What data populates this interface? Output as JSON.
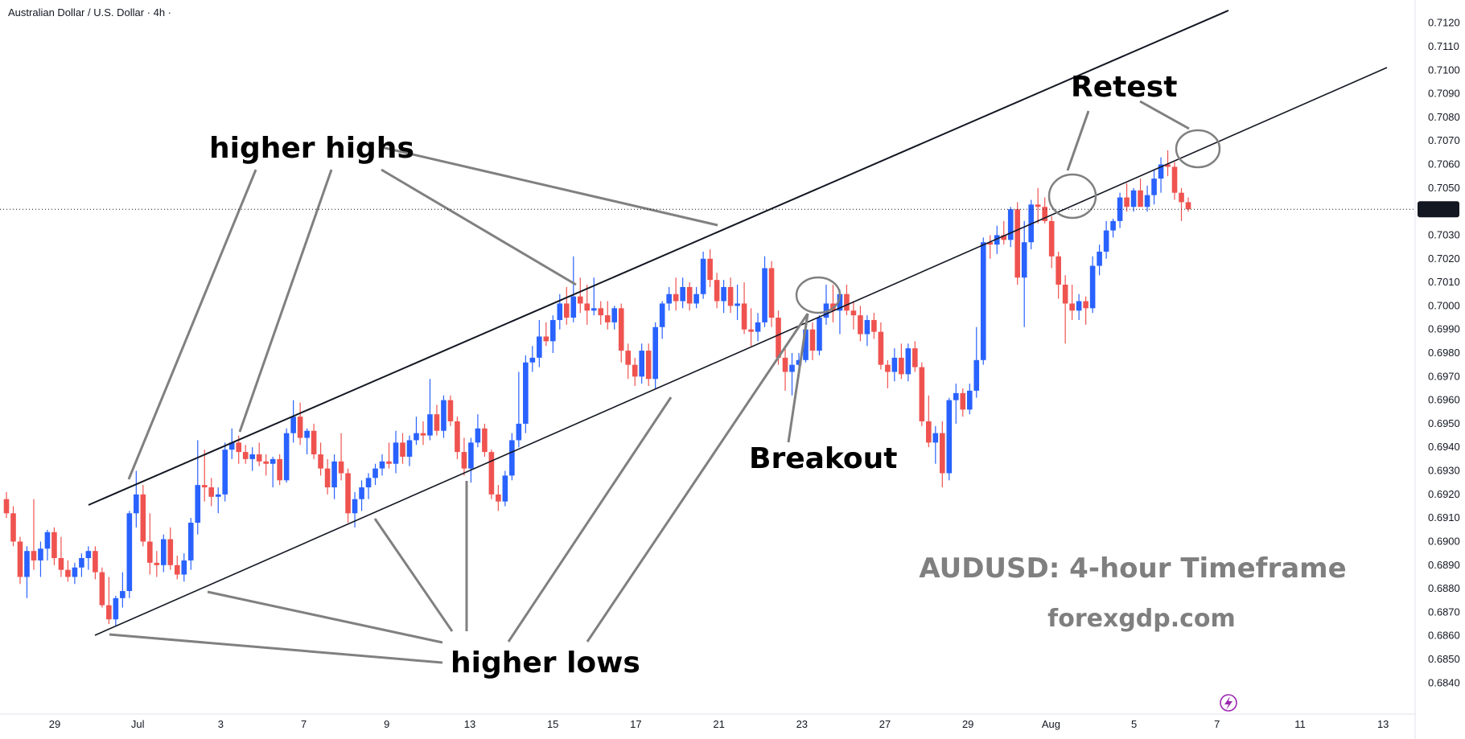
{
  "chart_data": {
    "type": "candlestick",
    "title": "Australian Dollar / U.S. Dollar · 4h ·",
    "watermark_title": "AUDUSD: 4-hour Timeframe",
    "watermark_site": "forexgdp.com",
    "ylim": [
      0.6835,
      0.7125
    ],
    "y_ticks": [
      "0.7120",
      "0.7110",
      "0.7100",
      "0.7090",
      "0.7080",
      "0.7070",
      "0.7060",
      "0.7050",
      "0.7030",
      "0.7020",
      "0.7010",
      "0.7000",
      "0.6990",
      "0.6980",
      "0.6970",
      "0.6960",
      "0.6950",
      "0.6940",
      "0.6930",
      "0.6920",
      "0.6910",
      "0.6900",
      "0.6890",
      "0.6880",
      "0.6870",
      "0.6860",
      "0.6850",
      "0.6840"
    ],
    "current_price": "0.7041",
    "x_ticks": [
      "29",
      "Jul",
      "3",
      "7",
      "9",
      "13",
      "15",
      "17",
      "21",
      "23",
      "27",
      "29",
      "Aug",
      "5",
      "7",
      "11",
      "13"
    ],
    "annotations": {
      "higher_highs": "higher highs",
      "higher_lows": "higher lows",
      "breakout": "Breakout",
      "retest": "Retest"
    },
    "colors": {
      "bull": "#2962ff",
      "bear": "#ef5350",
      "trendline": "#131722",
      "pointer": "#808080",
      "axis_text": "#131722",
      "price_badge": "#131722",
      "watermark": "#7f7f7f"
    },
    "candles": [
      [
        0.6918,
        0.6921,
        0.691,
        0.6912
      ],
      [
        0.6912,
        0.6915,
        0.6898,
        0.69
      ],
      [
        0.69,
        0.6902,
        0.6882,
        0.6885
      ],
      [
        0.6885,
        0.6898,
        0.6876,
        0.6896
      ],
      [
        0.6896,
        0.6918,
        0.6888,
        0.6892
      ],
      [
        0.6892,
        0.69,
        0.6885,
        0.6897
      ],
      [
        0.6897,
        0.6905,
        0.6892,
        0.6904
      ],
      [
        0.6904,
        0.6906,
        0.689,
        0.6893
      ],
      [
        0.6893,
        0.6902,
        0.6885,
        0.6888
      ],
      [
        0.6888,
        0.6892,
        0.6883,
        0.6885
      ],
      [
        0.6885,
        0.6891,
        0.6882,
        0.6889
      ],
      [
        0.6889,
        0.6895,
        0.6885,
        0.6893
      ],
      [
        0.6893,
        0.6898,
        0.6888,
        0.6896
      ],
      [
        0.6896,
        0.6898,
        0.6884,
        0.6887
      ],
      [
        0.6887,
        0.6889,
        0.6872,
        0.6873
      ],
      [
        0.6873,
        0.6885,
        0.6865,
        0.6867
      ],
      [
        0.6867,
        0.6877,
        0.6864,
        0.6876
      ],
      [
        0.6876,
        0.6887,
        0.6872,
        0.6879
      ],
      [
        0.6879,
        0.6913,
        0.6876,
        0.6912
      ],
      [
        0.6912,
        0.693,
        0.6906,
        0.692
      ],
      [
        0.692,
        0.6924,
        0.6898,
        0.69
      ],
      [
        0.69,
        0.6912,
        0.6886,
        0.6891
      ],
      [
        0.6891,
        0.6896,
        0.6885,
        0.689
      ],
      [
        0.689,
        0.6903,
        0.6887,
        0.6901
      ],
      [
        0.6901,
        0.6906,
        0.6888,
        0.689
      ],
      [
        0.689,
        0.6894,
        0.6884,
        0.6886
      ],
      [
        0.6886,
        0.6895,
        0.6883,
        0.6892
      ],
      [
        0.6892,
        0.691,
        0.6888,
        0.6908
      ],
      [
        0.6908,
        0.6943,
        0.6903,
        0.6924
      ],
      [
        0.6924,
        0.6939,
        0.6917,
        0.6923
      ],
      [
        0.6923,
        0.6927,
        0.6915,
        0.6919
      ],
      [
        0.6919,
        0.6923,
        0.6912,
        0.692
      ],
      [
        0.692,
        0.6942,
        0.6917,
        0.6939
      ],
      [
        0.6939,
        0.6948,
        0.6935,
        0.6942
      ],
      [
        0.6942,
        0.6945,
        0.6933,
        0.6938
      ],
      [
        0.6938,
        0.6941,
        0.6933,
        0.6935
      ],
      [
        0.6935,
        0.694,
        0.693,
        0.6937
      ],
      [
        0.6937,
        0.6942,
        0.6932,
        0.6934
      ],
      [
        0.6934,
        0.6937,
        0.6928,
        0.6933
      ],
      [
        0.6933,
        0.6936,
        0.6923,
        0.6935
      ],
      [
        0.6935,
        0.6937,
        0.6924,
        0.6926
      ],
      [
        0.6926,
        0.6948,
        0.6925,
        0.6946
      ],
      [
        0.6946,
        0.696,
        0.6942,
        0.6953
      ],
      [
        0.6953,
        0.6959,
        0.6941,
        0.6944
      ],
      [
        0.6944,
        0.6948,
        0.6937,
        0.6947
      ],
      [
        0.6947,
        0.695,
        0.6935,
        0.6937
      ],
      [
        0.6937,
        0.6942,
        0.6928,
        0.6931
      ],
      [
        0.6931,
        0.6935,
        0.692,
        0.6923
      ],
      [
        0.6923,
        0.6937,
        0.6918,
        0.6934
      ],
      [
        0.6934,
        0.6946,
        0.6926,
        0.6929
      ],
      [
        0.6929,
        0.6931,
        0.6908,
        0.6912
      ],
      [
        0.6912,
        0.6921,
        0.6906,
        0.6918
      ],
      [
        0.6918,
        0.6926,
        0.6913,
        0.6923
      ],
      [
        0.6923,
        0.6929,
        0.6918,
        0.6927
      ],
      [
        0.6927,
        0.6933,
        0.6924,
        0.6931
      ],
      [
        0.6931,
        0.6937,
        0.6928,
        0.6934
      ],
      [
        0.6934,
        0.6942,
        0.6931,
        0.6933
      ],
      [
        0.6933,
        0.6947,
        0.6929,
        0.6942
      ],
      [
        0.6942,
        0.6946,
        0.6933,
        0.6936
      ],
      [
        0.6936,
        0.6945,
        0.6932,
        0.6943
      ],
      [
        0.6943,
        0.6953,
        0.6941,
        0.6946
      ],
      [
        0.6946,
        0.6951,
        0.6941,
        0.6945
      ],
      [
        0.6945,
        0.6969,
        0.6943,
        0.6954
      ],
      [
        0.6954,
        0.6958,
        0.6945,
        0.6947
      ],
      [
        0.6947,
        0.6962,
        0.6944,
        0.696
      ],
      [
        0.696,
        0.6962,
        0.6949,
        0.6951
      ],
      [
        0.6951,
        0.6953,
        0.6935,
        0.6938
      ],
      [
        0.6938,
        0.6944,
        0.6928,
        0.6931
      ],
      [
        0.6931,
        0.6944,
        0.6925,
        0.6942
      ],
      [
        0.6942,
        0.6954,
        0.694,
        0.6948
      ],
      [
        0.6948,
        0.695,
        0.6936,
        0.6938
      ],
      [
        0.6938,
        0.6939,
        0.6918,
        0.692
      ],
      [
        0.692,
        0.6924,
        0.6913,
        0.6917
      ],
      [
        0.6917,
        0.693,
        0.6915,
        0.6928
      ],
      [
        0.6928,
        0.6946,
        0.6926,
        0.6943
      ],
      [
        0.6943,
        0.6972,
        0.694,
        0.695
      ],
      [
        0.695,
        0.6979,
        0.6946,
        0.6976
      ],
      [
        0.6976,
        0.6983,
        0.6972,
        0.6978
      ],
      [
        0.6978,
        0.6994,
        0.6974,
        0.6987
      ],
      [
        0.6987,
        0.6993,
        0.6983,
        0.6985
      ],
      [
        0.6985,
        0.6996,
        0.698,
        0.6994
      ],
      [
        0.6994,
        0.7005,
        0.699,
        0.7001
      ],
      [
        0.7001,
        0.7008,
        0.6992,
        0.6995
      ],
      [
        0.6995,
        0.7021,
        0.6993,
        0.7004
      ],
      [
        0.7004,
        0.7012,
        0.6997,
        0.7001
      ],
      [
        0.7001,
        0.7009,
        0.6992,
        0.6998
      ],
      [
        0.6998,
        0.7012,
        0.6996,
        0.6999
      ],
      [
        0.6999,
        0.7002,
        0.6992,
        0.6996
      ],
      [
        0.6996,
        0.7002,
        0.699,
        0.6993
      ],
      [
        0.6993,
        0.7,
        0.699,
        0.6999
      ],
      [
        0.6999,
        0.7001,
        0.6976,
        0.6981
      ],
      [
        0.6981,
        0.6984,
        0.6969,
        0.6975
      ],
      [
        0.6975,
        0.6978,
        0.6966,
        0.697
      ],
      [
        0.697,
        0.6984,
        0.6967,
        0.6981
      ],
      [
        0.6981,
        0.6984,
        0.6966,
        0.6969
      ],
      [
        0.6969,
        0.6993,
        0.6965,
        0.6991
      ],
      [
        0.6991,
        0.7002,
        0.6986,
        0.7001
      ],
      [
        0.7001,
        0.7008,
        0.6998,
        0.7005
      ],
      [
        0.7005,
        0.7012,
        0.6998,
        0.7002
      ],
      [
        0.7002,
        0.7012,
        0.6999,
        0.7008
      ],
      [
        0.7008,
        0.701,
        0.6998,
        0.7001
      ],
      [
        0.7001,
        0.7008,
        0.6999,
        0.7005
      ],
      [
        0.7005,
        0.7023,
        0.7003,
        0.702
      ],
      [
        0.702,
        0.7024,
        0.7008,
        0.7011
      ],
      [
        0.7011,
        0.7014,
        0.6999,
        0.7002
      ],
      [
        0.7002,
        0.7011,
        0.6997,
        0.7008
      ],
      [
        0.7008,
        0.7012,
        0.6997,
        0.7
      ],
      [
        0.7,
        0.7009,
        0.6994,
        0.7001
      ],
      [
        0.7001,
        0.701,
        0.6988,
        0.699
      ],
      [
        0.699,
        0.6999,
        0.6983,
        0.6989
      ],
      [
        0.6989,
        0.6997,
        0.6985,
        0.6993
      ],
      [
        0.6993,
        0.7021,
        0.6991,
        0.7016
      ],
      [
        0.7016,
        0.7019,
        0.6991,
        0.6995
      ],
      [
        0.6995,
        0.6998,
        0.6975,
        0.6978
      ],
      [
        0.6978,
        0.6983,
        0.6964,
        0.6972
      ],
      [
        0.6972,
        0.698,
        0.6962,
        0.6975
      ],
      [
        0.6975,
        0.698,
        0.697,
        0.6977
      ],
      [
        0.6977,
        0.6992,
        0.6976,
        0.699
      ],
      [
        0.699,
        0.6993,
        0.6977,
        0.6981
      ],
      [
        0.6981,
        0.6996,
        0.6979,
        0.6995
      ],
      [
        0.6995,
        0.7009,
        0.6992,
        0.7001
      ],
      [
        0.7001,
        0.7009,
        0.6993,
        0.6998
      ],
      [
        0.6998,
        0.7007,
        0.6988,
        0.7005
      ],
      [
        0.7005,
        0.7009,
        0.6996,
        0.6998
      ],
      [
        0.6998,
        0.7002,
        0.699,
        0.6996
      ],
      [
        0.6996,
        0.7,
        0.6985,
        0.6988
      ],
      [
        0.6988,
        0.6996,
        0.6983,
        0.6994
      ],
      [
        0.6994,
        0.6997,
        0.6986,
        0.6989
      ],
      [
        0.6989,
        0.6993,
        0.6973,
        0.6975
      ],
      [
        0.6975,
        0.6977,
        0.6965,
        0.6972
      ],
      [
        0.6972,
        0.6982,
        0.6968,
        0.6978
      ],
      [
        0.6978,
        0.6984,
        0.6969,
        0.6971
      ],
      [
        0.6971,
        0.6984,
        0.6968,
        0.6982
      ],
      [
        0.6982,
        0.6985,
        0.6972,
        0.6974
      ],
      [
        0.6974,
        0.6976,
        0.6949,
        0.6951
      ],
      [
        0.6951,
        0.6962,
        0.694,
        0.6942
      ],
      [
        0.6942,
        0.6949,
        0.6933,
        0.6946
      ],
      [
        0.6946,
        0.6951,
        0.6923,
        0.6929
      ],
      [
        0.6929,
        0.6961,
        0.6926,
        0.696
      ],
      [
        0.696,
        0.6967,
        0.695,
        0.6963
      ],
      [
        0.6963,
        0.6965,
        0.6953,
        0.6956
      ],
      [
        0.6956,
        0.6967,
        0.6954,
        0.6964
      ],
      [
        0.6964,
        0.6991,
        0.6961,
        0.6977
      ],
      [
        0.6977,
        0.7029,
        0.6975,
        0.7027
      ],
      [
        0.7027,
        0.703,
        0.702,
        0.7026
      ],
      [
        0.7026,
        0.7034,
        0.7022,
        0.703
      ],
      [
        0.703,
        0.7036,
        0.7026,
        0.7028
      ],
      [
        0.7028,
        0.7042,
        0.7025,
        0.7041
      ],
      [
        0.7041,
        0.7044,
        0.7009,
        0.7012
      ],
      [
        0.7012,
        0.7036,
        0.6991,
        0.7027
      ],
      [
        0.7027,
        0.7045,
        0.7024,
        0.7043
      ],
      [
        0.7043,
        0.705,
        0.7035,
        0.7042
      ],
      [
        0.7042,
        0.7046,
        0.7035,
        0.7036
      ],
      [
        0.7036,
        0.7038,
        0.7016,
        0.7021
      ],
      [
        0.7021,
        0.7023,
        0.7003,
        0.7009
      ],
      [
        0.7009,
        0.7013,
        0.6984,
        0.7001
      ],
      [
        0.7001,
        0.7009,
        0.6994,
        0.6998
      ],
      [
        0.6998,
        0.7005,
        0.6994,
        0.7002
      ],
      [
        0.7002,
        0.7004,
        0.6992,
        0.6999
      ],
      [
        0.6999,
        0.7021,
        0.6997,
        0.7017
      ],
      [
        0.7017,
        0.7026,
        0.7013,
        0.7023
      ],
      [
        0.7023,
        0.7036,
        0.702,
        0.7032
      ],
      [
        0.7032,
        0.7037,
        0.7029,
        0.7036
      ],
      [
        0.7036,
        0.7048,
        0.7033,
        0.7046
      ],
      [
        0.7046,
        0.7052,
        0.704,
        0.7042
      ],
      [
        0.7042,
        0.705,
        0.704,
        0.7049
      ],
      [
        0.7049,
        0.7054,
        0.7043,
        0.7042
      ],
      [
        0.7042,
        0.7051,
        0.704,
        0.7047
      ],
      [
        0.7047,
        0.7058,
        0.7043,
        0.7054
      ],
      [
        0.7054,
        0.7063,
        0.7048,
        0.706
      ],
      [
        0.706,
        0.7066,
        0.7055,
        0.7059
      ],
      [
        0.7059,
        0.7061,
        0.7045,
        0.7048
      ],
      [
        0.7048,
        0.705,
        0.7036,
        0.7044
      ],
      [
        0.7044,
        0.7046,
        0.704,
        0.7041
      ]
    ]
  }
}
